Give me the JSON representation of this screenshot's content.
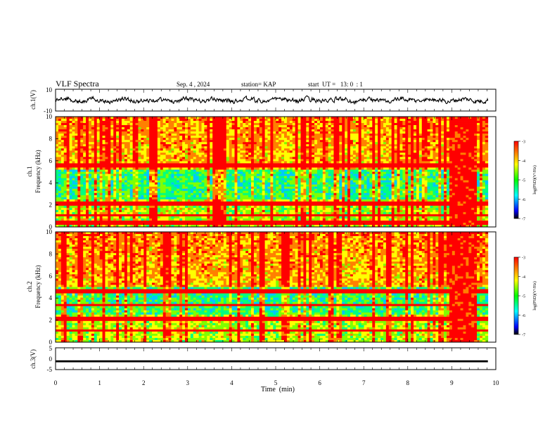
{
  "header": {
    "title": "VLF Spectra",
    "date": "Sep. 4 , 2024",
    "station": "station= KAP",
    "start": "start  UT =   13: 0  : 1"
  },
  "chart_data": [
    {
      "panel": "ch1-waveform",
      "type": "line",
      "ylabel": "ch.1(V)",
      "ylim": [
        -10,
        10
      ],
      "xlim": [
        0,
        10
      ],
      "yticks": [
        "10",
        "-10"
      ],
      "trace": {
        "x_end": 9.82,
        "baseline": 0,
        "amplitude_range": [
          -4.5,
          4.5
        ],
        "color": "#000000"
      }
    },
    {
      "panel": "ch1-spectrogram",
      "type": "heatmap",
      "ylabel": "ch.1\nFrequency  (kHz)",
      "ylim": [
        0,
        10
      ],
      "xlim": [
        0,
        9.82
      ],
      "yticks": [
        "0",
        "2",
        "4",
        "6",
        "8",
        "10"
      ],
      "colorbar": {
        "label": "log(PSD)(V²/Hz)",
        "range": [
          -7,
          -3
        ],
        "ticks": [
          "-3",
          "-4",
          "-5",
          "-6",
          "-7"
        ]
      },
      "features": {
        "quiet_band_khz": [
          2.5,
          5.2
        ],
        "bright_segment_min": [
          8.95,
          9.55
        ],
        "strong_line_khz": [
          5.6,
          2.1,
          1.0,
          0.4
        ]
      }
    },
    {
      "panel": "ch2-spectrogram",
      "type": "heatmap",
      "ylabel": "ch.2\nFrequency  (kHz)",
      "ylim": [
        0,
        10
      ],
      "xlim": [
        0,
        9.82
      ],
      "yticks": [
        "0",
        "2",
        "4",
        "6",
        "8",
        "10"
      ],
      "colorbar": {
        "label": "log(PSD)(V²/Hz)",
        "range": [
          -7,
          -3
        ],
        "ticks": [
          "-3",
          "-4",
          "-5",
          "-6",
          "-7"
        ]
      },
      "features": {
        "quiet_band_khz": [
          2.5,
          5.0
        ],
        "bright_segment_min": [
          8.95,
          9.55
        ],
        "strong_line_khz": [
          4.6,
          3.4,
          2.1,
          1.0
        ]
      }
    },
    {
      "panel": "ch3-waveform",
      "type": "line",
      "ylabel": "ch.3(V)",
      "ylim": [
        -5,
        5
      ],
      "xlim": [
        0,
        10
      ],
      "yticks": [
        "5",
        "0",
        "-5"
      ],
      "trace": {
        "x_end": 9.82,
        "level": -1.2,
        "thickness_v": 0.9,
        "color": "#000000"
      }
    }
  ],
  "x_axis": {
    "label": "Time  (min)",
    "ticks": [
      "0",
      "1",
      "2",
      "3",
      "4",
      "5",
      "6",
      "7",
      "8",
      "9",
      "10"
    ],
    "range": [
      0,
      10
    ]
  }
}
